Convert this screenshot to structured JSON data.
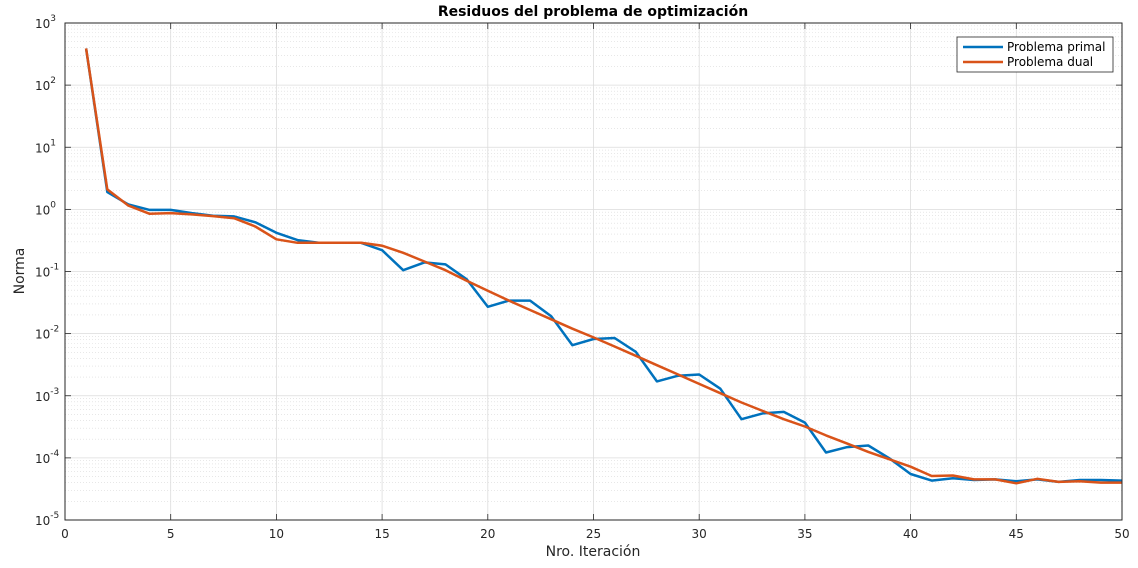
{
  "chart_data": {
    "type": "line",
    "title": "Residuos del problema de optimización",
    "xlabel": "Nro. Iteración",
    "ylabel": "Norma",
    "xlim": [
      0,
      50
    ],
    "ylim": [
      1e-05,
      1000
    ],
    "yscale": "log",
    "grid": true,
    "minor_grid": true,
    "legend_position": "top-right",
    "x_ticks": [
      0,
      5,
      10,
      15,
      20,
      25,
      30,
      35,
      40,
      45,
      50
    ],
    "y_tick_labels": [
      {
        "base": "10",
        "exp": "-5"
      },
      {
        "base": "10",
        "exp": "-4"
      },
      {
        "base": "10",
        "exp": "-3"
      },
      {
        "base": "10",
        "exp": "-2"
      },
      {
        "base": "10",
        "exp": "-1"
      },
      {
        "base": "10",
        "exp": "0"
      },
      {
        "base": "10",
        "exp": "1"
      },
      {
        "base": "10",
        "exp": "2"
      },
      {
        "base": "10",
        "exp": "3"
      }
    ],
    "x": [
      1,
      2,
      3,
      4,
      5,
      6,
      7,
      8,
      9,
      10,
      11,
      12,
      13,
      14,
      15,
      16,
      17,
      18,
      19,
      20,
      21,
      22,
      23,
      24,
      25,
      26,
      27,
      28,
      29,
      30,
      31,
      32,
      33,
      34,
      35,
      36,
      37,
      38,
      39,
      40,
      41,
      42,
      43,
      44,
      45,
      46,
      47,
      48,
      49,
      50
    ],
    "series": [
      {
        "name": "Problema primal",
        "color": "#0072BD",
        "values": [
          390,
          1.9,
          1.2,
          0.98,
          0.98,
          0.87,
          0.79,
          0.77,
          0.62,
          0.42,
          0.32,
          0.29,
          0.29,
          0.29,
          0.22,
          0.105,
          0.14,
          0.13,
          0.075,
          0.027,
          0.034,
          0.034,
          0.019,
          0.0065,
          0.0082,
          0.0085,
          0.0051,
          0.0017,
          0.0021,
          0.0022,
          0.0013,
          0.00042,
          0.00052,
          0.00055,
          0.00037,
          0.000122,
          0.000149,
          0.000158,
          9.8e-05,
          5.5e-05,
          4.3e-05,
          4.7e-05,
          4.4e-05,
          4.5e-05,
          4.2e-05,
          4.5e-05,
          4.1e-05,
          4.4e-05,
          4.4e-05,
          4.3e-05
        ]
      },
      {
        "name": "Problema dual",
        "color": "#D95319",
        "values": [
          390,
          2.1,
          1.15,
          0.85,
          0.87,
          0.83,
          0.78,
          0.72,
          0.53,
          0.33,
          0.29,
          0.29,
          0.29,
          0.29,
          0.26,
          0.2,
          0.145,
          0.105,
          0.071,
          0.049,
          0.034,
          0.024,
          0.017,
          0.012,
          0.0087,
          0.0062,
          0.0044,
          0.0031,
          0.0022,
          0.00155,
          0.0011,
          0.00078,
          0.00057,
          0.00042,
          0.00032,
          0.00023,
          0.00017,
          0.000125,
          9.5e-05,
          7.2e-05,
          5.1e-05,
          5.2e-05,
          4.5e-05,
          4.5e-05,
          3.9e-05,
          4.6e-05,
          4.1e-05,
          4.2e-05,
          4e-05,
          4e-05
        ]
      }
    ]
  }
}
